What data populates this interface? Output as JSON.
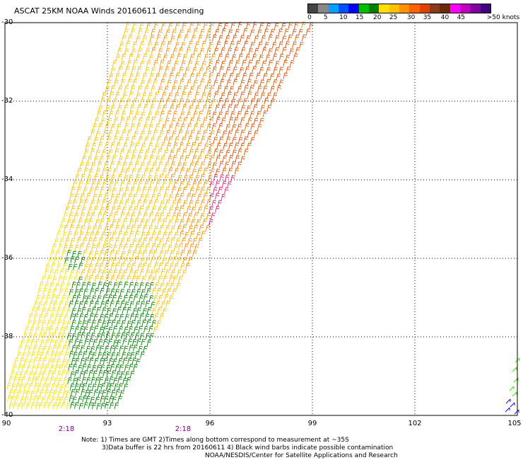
{
  "title": "ASCAT 25KM NOAA Winds 20160611 descending",
  "scale": {
    "colors": [
      "#444444",
      "#888888",
      "#00a0ff",
      "#0050ff",
      "#0000ff",
      "#00c000",
      "#008000",
      "#ffe000",
      "#ffc000",
      "#ff9000",
      "#ff6000",
      "#e04000",
      "#8a3a1a",
      "#6a2a0a",
      "#ff00ff",
      "#c000c0",
      "#8000a0",
      "#400080"
    ],
    "labels": [
      {
        "value": "0",
        "pos": 0
      },
      {
        "value": "5",
        "pos": 0.1
      },
      {
        "value": "10",
        "pos": 0.21
      },
      {
        "value": "15",
        "pos": 0.31
      },
      {
        "value": "20",
        "pos": 0.42
      },
      {
        "value": "25",
        "pos": 0.52
      },
      {
        "value": "30",
        "pos": 0.63
      },
      {
        "value": "35",
        "pos": 0.73
      },
      {
        "value": "40",
        "pos": 0.84
      },
      {
        "value": "45",
        "pos": 0.94
      },
      {
        "value": ">50 knots",
        "pos": 1.1
      }
    ]
  },
  "lat_labels": [
    "-30",
    "-32",
    "-34",
    "-36",
    "-38",
    "-40"
  ],
  "lon_labels": [
    "90",
    "93",
    "96",
    "99",
    "102",
    "105"
  ],
  "time_labels": [
    "2:18",
    "2:18"
  ],
  "notes": [
    "Note: 1) Times are GMT 2)Times along bottom correspond to measurement at ~35S",
    "3)Data buffer is 22 hrs from 20160611 4) Black wind barbs indicate possible contamination",
    "NOAA/NESDIS/Center for Satellite Applications and Research"
  ],
  "map_data": {
    "lat_range": [
      -40,
      -30
    ],
    "lon_range": [
      90,
      105
    ],
    "swath": {
      "corners": [
        [
          -30,
          93.6
        ],
        [
          -30,
          99
        ],
        [
          -40,
          93.1
        ],
        [
          -40,
          89.8
        ]
      ]
    },
    "wind_colors": {
      "green": "#008000",
      "yellow": "#ffe000",
      "gold": "#ffc000",
      "orange": "#ff9000",
      "dark_orange": "#e05000",
      "magenta": "#e0206a",
      "blue": "#0000ff",
      "lime": "#30e000"
    }
  }
}
